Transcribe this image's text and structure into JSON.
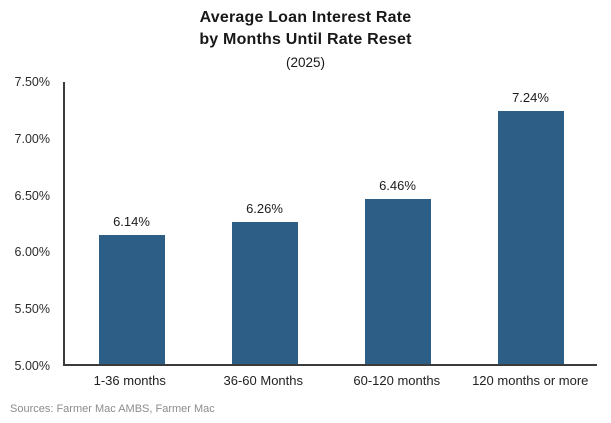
{
  "chart": {
    "title_line1": "Average Loan Interest Rate",
    "title_line2": "by Months Until Rate Reset",
    "subtitle": "(2025)",
    "source": "Sources: Farmer Mac AMBS, Farmer Mac"
  },
  "chart_data": {
    "type": "bar",
    "title": "Average Loan Interest Rate by Months Until Rate Reset (2025)",
    "categories": [
      "1-36 months",
      "36-60 Months",
      "60-120 months",
      "120 months or more"
    ],
    "values": [
      6.14,
      6.26,
      6.46,
      7.24
    ],
    "value_labels": [
      "6.14%",
      "6.26%",
      "6.46%",
      "7.24%"
    ],
    "xlabel": "",
    "ylabel": "",
    "ylim": [
      5.0,
      7.5
    ],
    "ytick_interval": 0.5,
    "yticks_top_to_bottom": [
      "7.50%",
      "7.00%",
      "6.50%",
      "6.00%",
      "5.50%",
      "5.00%"
    ],
    "grid": false,
    "legend": false,
    "bar_color": "#2D5E86",
    "axis_color": "#3b3b3b",
    "source": "Sources: Farmer Mac AMBS, Farmer Mac"
  }
}
